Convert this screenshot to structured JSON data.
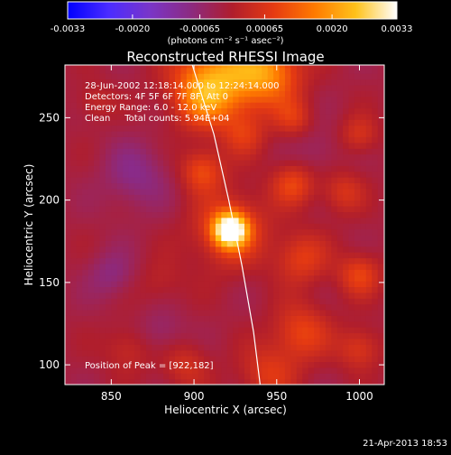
{
  "colorbar": {
    "ticks": [
      "-0.0033",
      "-0.0020",
      "-0.00065",
      "0.00065",
      "0.0020",
      "0.0033"
    ],
    "unit_label": "(photons cm⁻² s⁻¹ asec⁻²)",
    "stops": [
      "#0000ff",
      "#4b2cff",
      "#7a35c8",
      "#8c2a80",
      "#b01e2c",
      "#e53a12",
      "#ff7a00",
      "#ffc21a",
      "#ffffff"
    ]
  },
  "chart_data": {
    "type": "heatmap",
    "title": "Reconstructed RHESSI Image",
    "xlabel": "Heliocentric X (arcsec)",
    "ylabel": "Heliocentric Y (arcsec)",
    "xlim": [
      822,
      1015
    ],
    "ylim": [
      88,
      282
    ],
    "x_ticks": [
      850,
      900,
      950,
      1000
    ],
    "y_ticks": [
      100,
      150,
      200,
      250
    ],
    "color_range": [
      -0.0033,
      0.0033
    ],
    "info_lines": [
      "28-Jun-2002 12:18:14.000 to 12:24:14.000",
      "Detectors: 4F 5F 6F 7F 8F, Att 0",
      "Energy Range: 6.0 - 12.0 keV",
      "Clean     Total counts: 5.94E+04"
    ],
    "peak_label": "Position of Peak = [922,182]",
    "peak": [
      922,
      182
    ],
    "limb_line": [
      [
        899,
        282
      ],
      [
        912,
        240
      ],
      [
        921,
        200
      ],
      [
        929,
        160
      ],
      [
        936,
        120
      ],
      [
        940,
        88
      ]
    ]
  },
  "footer": {
    "date": "21-Apr-2013 18:53"
  }
}
